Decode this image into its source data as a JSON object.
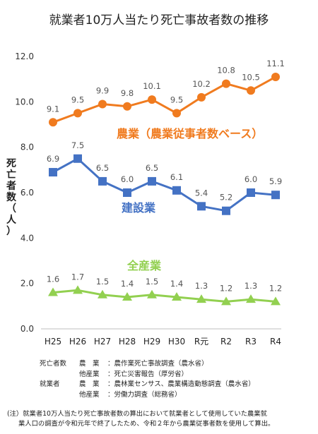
{
  "chart_data": {
    "type": "line",
    "title": "就業者10万人当たり死亡事故者数の推移",
    "ylabel": "死亡者数（人）",
    "ylim": [
      0,
      12
    ],
    "yticks": [
      "0.0",
      "2.0",
      "4.0",
      "6.0",
      "8.0",
      "10.0",
      "12.0"
    ],
    "categories": [
      "H25",
      "H26",
      "H27",
      "H28",
      "H29",
      "H30",
      "R元",
      "R2",
      "R3",
      "R4"
    ],
    "grid": false,
    "series": [
      {
        "name": "農業（農業従事者数ベース）",
        "color": "#f07b1f",
        "marker": "circle",
        "values": [
          9.1,
          9.5,
          9.9,
          9.8,
          10.1,
          9.5,
          10.2,
          10.8,
          10.5,
          11.1
        ],
        "labels": [
          "9.1",
          "9.5",
          "9.9",
          "9.8",
          "10.1",
          "9.5",
          "10.2",
          "10.8",
          "10.5",
          "11.1"
        ]
      },
      {
        "name": "建設業",
        "color": "#4472c4",
        "marker": "square",
        "values": [
          6.9,
          7.5,
          6.5,
          6.0,
          6.5,
          6.1,
          5.4,
          5.2,
          6.0,
          5.9
        ],
        "labels": [
          "6.9",
          "7.5",
          "6.5",
          "6.0",
          "6.5",
          "6.1",
          "5.4",
          "5.2",
          "6.0",
          "5.9"
        ]
      },
      {
        "name": "全産業",
        "color": "#92d050",
        "marker": "triangle",
        "values": [
          1.6,
          1.7,
          1.5,
          1.4,
          1.5,
          1.4,
          1.3,
          1.2,
          1.3,
          1.2
        ],
        "labels": [
          "1.6",
          "1.7",
          "1.5",
          "1.4",
          "1.5",
          "1.4",
          "1.3",
          "1.2",
          "1.3",
          "1.2"
        ]
      }
    ]
  },
  "sources": [
    {
      "category": "死亡者数",
      "kind": "農　業",
      "text": "：農作業死亡事故調査（農水省）"
    },
    {
      "category": "",
      "kind": "他産業",
      "text": "：死亡災害報告（厚労省）"
    },
    {
      "category": "就業者",
      "kind": "農　業",
      "text": "：農林業センサス、農業構造動態調査（農水省）"
    },
    {
      "category": "",
      "kind": "他産業",
      "text": "：労働力調査（総務省）"
    }
  ],
  "note": {
    "line1": "(注）就業者10万人当たり死亡事故者数の算出において就業者として使用していた農業就",
    "line2": "業人口の調査が令和元年で終了したため、令和２年から農業従事者数を使用して算出。"
  }
}
